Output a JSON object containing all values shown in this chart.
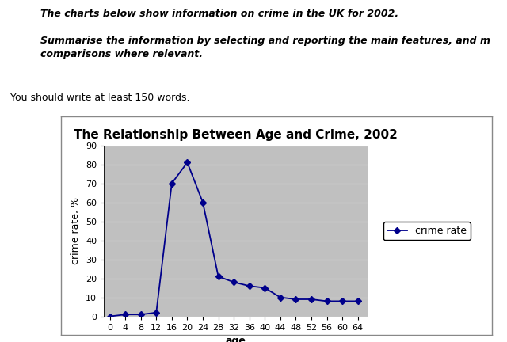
{
  "title": "The Relationship Between Age and Crime, 2002",
  "xlabel": "age",
  "ylabel": "crime rate, %",
  "ages": [
    0,
    4,
    8,
    12,
    16,
    20,
    24,
    28,
    32,
    36,
    40,
    44,
    48,
    52,
    56,
    60,
    64
  ],
  "crime_rates": [
    0,
    1,
    1,
    2,
    70,
    81,
    60,
    21,
    18,
    16,
    15,
    10,
    9,
    9,
    8,
    8,
    8
  ],
  "line_color": "#00008B",
  "marker": "D",
  "marker_size": 4,
  "ylim": [
    0,
    90
  ],
  "yticks": [
    0,
    10,
    20,
    30,
    40,
    50,
    60,
    70,
    80,
    90
  ],
  "xtick_labels": [
    "0",
    "4",
    "8",
    "12",
    "16",
    "20",
    "24",
    "28",
    "32",
    "36",
    "40",
    "44",
    "48",
    "52",
    "56",
    "60",
    "64"
  ],
  "legend_label": "crime rate",
  "plot_bg_color": "#C0C0C0",
  "figure_bg_color": "#FFFFFF",
  "header_line1": "The charts below show information on crime in the UK for 2002.",
  "header_line2": "Summarise the information by selecting and reporting the main features, and m\ncomparisons where relevant.",
  "footer": "You should write at least 150 words.",
  "title_fontsize": 11,
  "axis_label_fontsize": 9,
  "tick_fontsize": 8,
  "legend_fontsize": 9,
  "box_color": "#FFFFFF",
  "box_edge_color": "#888888"
}
